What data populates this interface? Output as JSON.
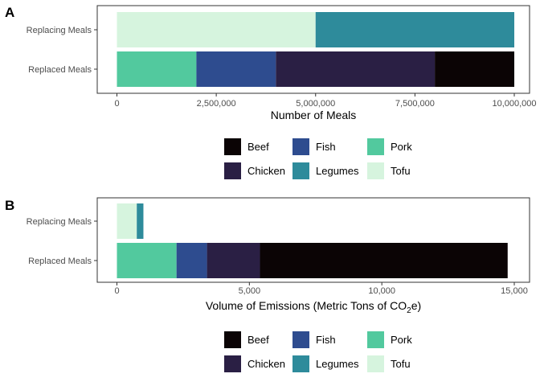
{
  "chart_data": [
    {
      "type": "bar",
      "orientation": "horizontal",
      "stacked": true,
      "panel_label": "A",
      "categories": [
        "Replacing Meals",
        "Replaced Meals"
      ],
      "xlabel": "Number of Meals",
      "xlabel_parts": [],
      "xlim": [
        0,
        10000000
      ],
      "xticks": [
        0,
        2500000,
        5000000,
        7500000,
        10000000
      ],
      "xtick_labels": [
        "0",
        "2,500,000",
        "5,000,000",
        "7,500,000",
        "10,000,000"
      ],
      "series": [
        {
          "name": "Tofu",
          "color": "#d6f4de",
          "values": [
            5000000,
            0
          ]
        },
        {
          "name": "Legumes",
          "color": "#2e8b9b",
          "values": [
            5000000,
            0
          ]
        },
        {
          "name": "Pork",
          "color": "#52c99e",
          "values": [
            0,
            2000000
          ]
        },
        {
          "name": "Fish",
          "color": "#2e4c8f",
          "values": [
            0,
            2000000
          ]
        },
        {
          "name": "Chicken",
          "color": "#2a1f44",
          "values": [
            0,
            4000000
          ]
        },
        {
          "name": "Beef",
          "color": "#0b0405",
          "values": [
            0,
            2000000
          ]
        }
      ],
      "legend_placement": "bottom"
    },
    {
      "type": "bar",
      "orientation": "horizontal",
      "stacked": true,
      "panel_label": "B",
      "categories": [
        "Replacing Meals",
        "Replaced Meals"
      ],
      "xlabel": "",
      "xlabel_parts": [
        "Volume of Emissions (Metric Tons of CO",
        "2",
        "e)"
      ],
      "xlim": [
        0,
        15000
      ],
      "xticks": [
        0,
        5000,
        10000,
        15000
      ],
      "xtick_labels": [
        "0",
        "5,000",
        "10,000",
        "15,000"
      ],
      "series": [
        {
          "name": "Tofu",
          "color": "#d6f4de",
          "values": [
            750,
            0
          ]
        },
        {
          "name": "Legumes",
          "color": "#2e8b9b",
          "values": [
            250,
            0
          ]
        },
        {
          "name": "Pork",
          "color": "#52c99e",
          "values": [
            0,
            2250
          ]
        },
        {
          "name": "Fish",
          "color": "#2e4c8f",
          "values": [
            0,
            1150
          ]
        },
        {
          "name": "Chicken",
          "color": "#2a1f44",
          "values": [
            0,
            2000
          ]
        },
        {
          "name": "Beef",
          "color": "#0b0405",
          "values": [
            0,
            9350
          ]
        }
      ],
      "legend_placement": "bottom"
    }
  ],
  "legend": {
    "entries": [
      {
        "name": "Beef",
        "color": "#0b0405"
      },
      {
        "name": "Fish",
        "color": "#2e4c8f"
      },
      {
        "name": "Pork",
        "color": "#52c99e"
      },
      {
        "name": "Chicken",
        "color": "#2a1f44"
      },
      {
        "name": "Legumes",
        "color": "#2e8b9b"
      },
      {
        "name": "Tofu",
        "color": "#d6f4de"
      }
    ]
  }
}
